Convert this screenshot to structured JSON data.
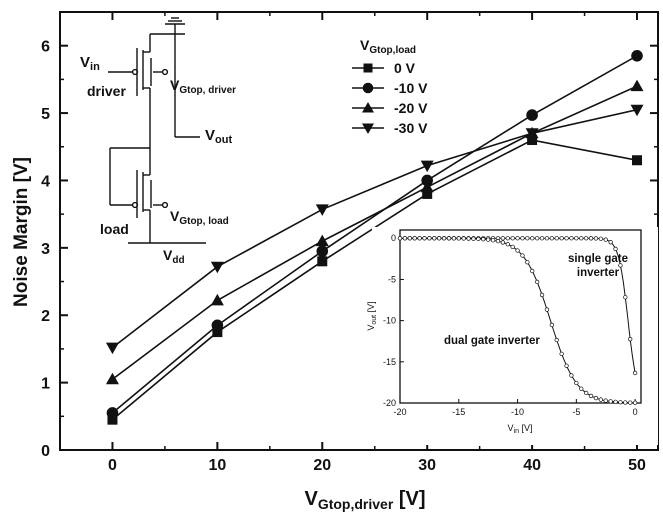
{
  "chart_data": {
    "type": "line",
    "xlabel": "V",
    "xlabel_sub": "Gtop,driver",
    "xlabel_unit": "[V]",
    "ylabel": "Noise Margin [V]",
    "xlim": [
      -5,
      52
    ],
    "ylim": [
      0,
      6.5
    ],
    "x_ticks": [
      "0",
      "10",
      "20",
      "30",
      "40",
      "50"
    ],
    "y_ticks": [
      "0",
      "1",
      "2",
      "3",
      "4",
      "5",
      "6"
    ],
    "x": [
      0,
      10,
      20,
      30,
      40,
      50
    ],
    "legend_title": "V",
    "legend_title_sub": "Gtop,load",
    "series": [
      {
        "name": "0 V",
        "marker": "square",
        "values": [
          0.45,
          1.75,
          2.8,
          3.8,
          4.6,
          4.3
        ]
      },
      {
        "name": "-10 V",
        "marker": "circle",
        "values": [
          0.55,
          1.85,
          2.95,
          4.0,
          4.97,
          5.85
        ]
      },
      {
        "name": "-20 V",
        "marker": "triangle-up",
        "values": [
          1.05,
          2.22,
          3.1,
          3.9,
          4.7,
          5.4
        ]
      },
      {
        "name": "-30 V",
        "marker": "triangle-down",
        "values": [
          1.52,
          2.72,
          3.57,
          4.22,
          4.7,
          5.05
        ]
      }
    ],
    "inset": {
      "type": "line",
      "xlabel": "V",
      "xlabel_sub": "in",
      "xlabel_unit": "[V]",
      "ylabel": "V",
      "ylabel_sub": "out",
      "ylabel_unit": "[V]",
      "xlim": [
        -20,
        0.5
      ],
      "ylim": [
        -20,
        1
      ],
      "x_ticks": [
        "-20",
        "-15",
        "-10",
        "-5",
        "0"
      ],
      "y_ticks": [
        "0",
        "-5",
        "-10",
        "-15",
        "-20"
      ],
      "annotations": [
        "single gate inverter",
        "dual gate inverter"
      ],
      "series": [
        {
          "name": "single gate inverter",
          "x_mid": -0.6,
          "steepness": 2.5
        },
        {
          "name": "dual gate inverter",
          "x_mid": -7.2,
          "steepness": 0.9
        }
      ]
    }
  },
  "circuit": {
    "vin_label": "V",
    "vin_sub": "in",
    "driver_label": "driver",
    "vgtop_driver_label": "V",
    "vgtop_driver_sub": "Gtop, driver",
    "vout_label": "V",
    "vout_sub": "out",
    "load_label": "load",
    "vgtop_load_label": "V",
    "vgtop_load_sub": "Gtop, load",
    "vdd_label": "V",
    "vdd_sub": "dd"
  }
}
